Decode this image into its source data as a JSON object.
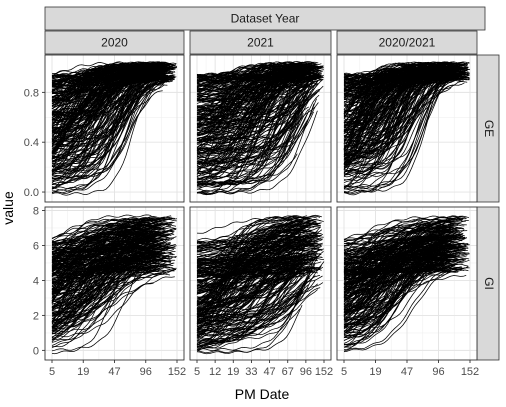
{
  "chart_data": {
    "type": "line",
    "facet_title": "Dataset Year",
    "columns": [
      "2020",
      "2021",
      "2020/2021"
    ],
    "rows": [
      "GE",
      "GI"
    ],
    "xlabel": "PM Date",
    "ylabel": "value",
    "x_ticks": {
      "2020": [
        "5",
        "19",
        "47",
        "96",
        "152"
      ],
      "2021": [
        "5",
        "12",
        "19",
        "33",
        "47",
        "67",
        "96",
        "152"
      ],
      "2020/2021": [
        "5",
        "19",
        "47",
        "96",
        "152"
      ]
    },
    "y_ticks": {
      "GE": [
        0.0,
        0.4,
        0.8
      ],
      "GI": [
        0,
        2,
        4,
        6,
        8
      ]
    },
    "y_tick_labels": {
      "GE": [
        "0.0",
        "0.4",
        "0.8"
      ],
      "GI": [
        "0",
        "2",
        "4",
        "6",
        "8"
      ]
    },
    "ylim": {
      "GE": [
        -0.08,
        1.1
      ],
      "GI": [
        -0.55,
        8.2
      ]
    },
    "x_range": [
      0,
      1
    ],
    "line_color": "#000000",
    "strip_color": "#d9d9d9",
    "grid": true,
    "note": ""
  }
}
